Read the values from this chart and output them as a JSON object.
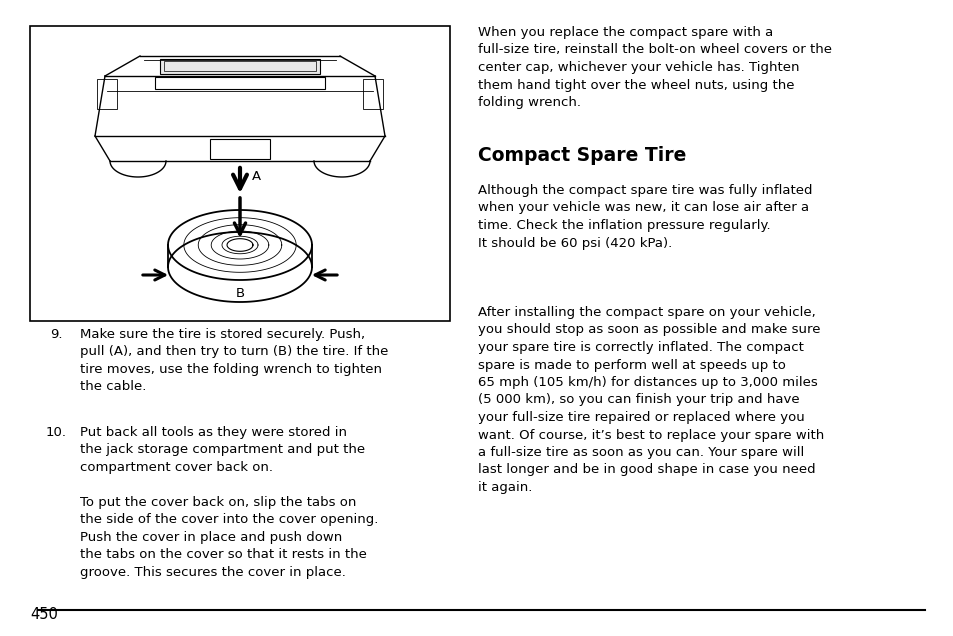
{
  "bg_color": "#ffffff",
  "text_color": "#000000",
  "page_number": "450",
  "font_size_body": 9.5,
  "font_size_heading": 13.5,
  "right_col_intro": "When you replace the compact spare with a\nfull-size tire, reinstall the bolt-on wheel covers or the\ncenter cap, whichever your vehicle has. Tighten\nthem hand tight over the wheel nuts, using the\nfolding wrench.",
  "section_heading": "Compact Spare Tire",
  "right_col_para1": "Although the compact spare tire was fully inflated\nwhen your vehicle was new, it can lose air after a\ntime. Check the inflation pressure regularly.\nIt should be 60 psi (420 kPa).",
  "right_col_para2": "After installing the compact spare on your vehicle,\nyou should stop as soon as possible and make sure\nyour spare tire is correctly inflated. The compact\nspare is made to perform well at speeds up to\n65 mph (105 km/h) for distances up to 3,000 miles\n(5 000 km), so you can finish your trip and have\nyour full-size tire repaired or replaced where you\nwant. Of course, it’s best to replace your spare with\na full-size tire as soon as you can. Your spare will\nlast longer and be in good shape in case you need\nit again.",
  "step9_num": "9.",
  "step9_text": "Make sure the tire is stored securely. Push,\npull (A), and then try to turn (B) the tire. If the\ntire moves, use the folding wrench to tighten\nthe cable.",
  "step10_num": "10.",
  "step10_text": "Put back all tools as they were stored in\nthe jack storage compartment and put the\ncompartment cover back on.",
  "step10b_text": "To put the cover back on, slip the tabs on\nthe side of the cover into the cover opening.\nPush the cover in place and push down\nthe tabs on the cover so that it rests in the\ngroove. This secures the cover in place."
}
